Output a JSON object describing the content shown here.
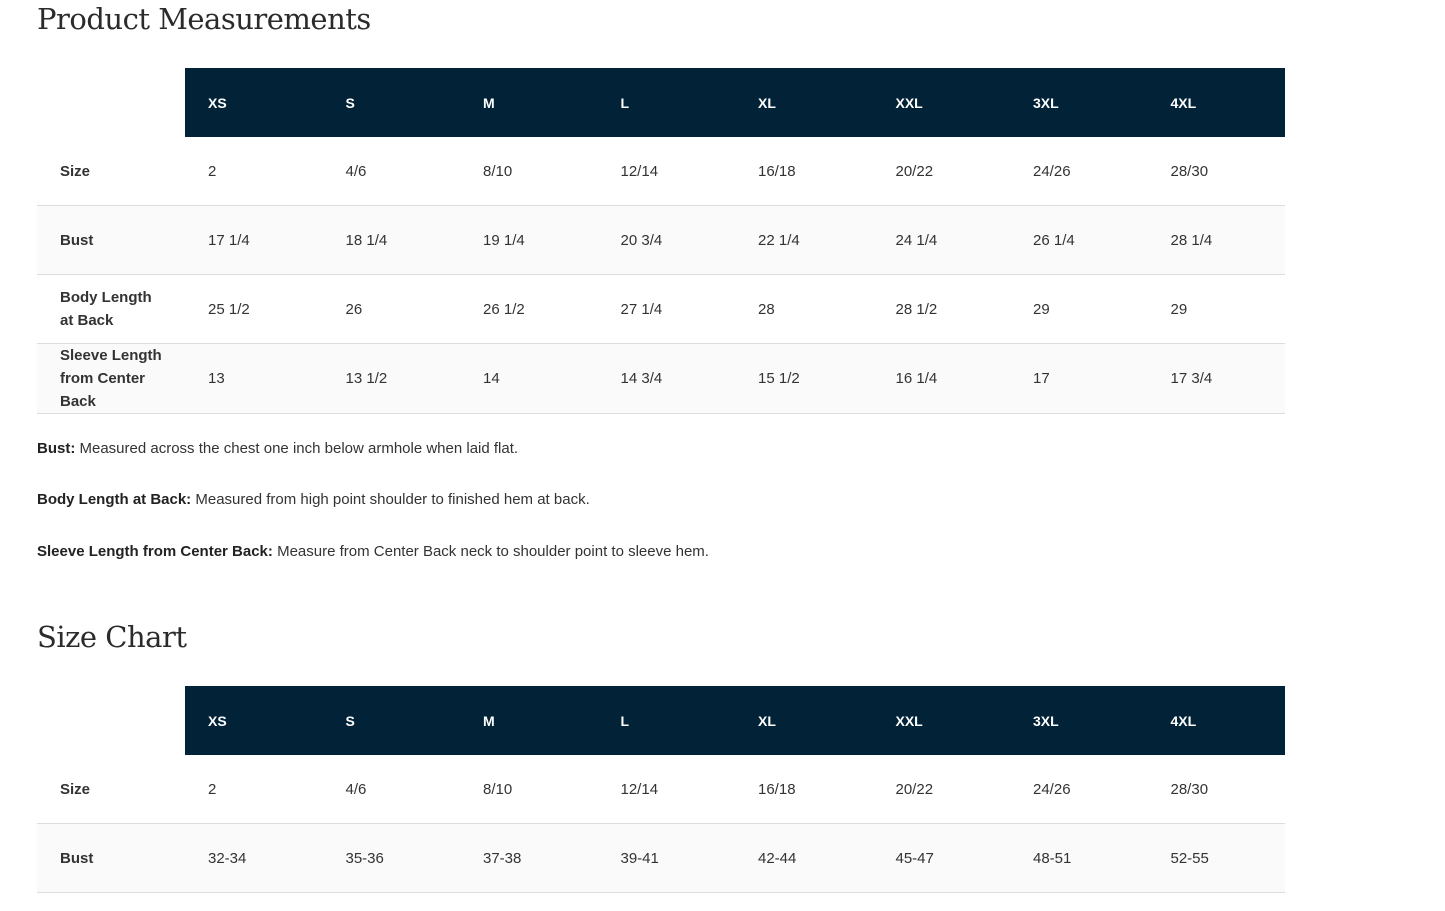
{
  "measurements": {
    "title": "Product Measurements",
    "headers": [
      "XS",
      "S",
      "M",
      "L",
      "XL",
      "XXL",
      "3XL",
      "4XL"
    ],
    "rows": [
      {
        "label": "Size",
        "values": [
          "2",
          "4/6",
          "8/10",
          "12/14",
          "16/18",
          "20/22",
          "24/26",
          "28/30"
        ]
      },
      {
        "label": "Bust",
        "values": [
          "17 1/4",
          "18 1/4",
          "19 1/4",
          "20 3/4",
          "22 1/4",
          "24 1/4",
          "26 1/4",
          "28 1/4"
        ]
      },
      {
        "label": "Body Length at Back",
        "values": [
          "25 1/2",
          "26",
          "26 1/2",
          "27 1/4",
          "28",
          "28 1/2",
          "29",
          "29"
        ]
      },
      {
        "label": "Sleeve Length from Center Back",
        "values": [
          "13",
          "13 1/2",
          "14",
          "14 3/4",
          "15 1/2",
          "16 1/4",
          "17",
          "17 3/4"
        ]
      }
    ],
    "notes": [
      {
        "term": "Bust:",
        "text": " Measured across the chest one inch below armhole when laid flat."
      },
      {
        "term": "Body Length at Back:",
        "text": " Measured from high point shoulder to finished hem at back."
      },
      {
        "term": "Sleeve Length from Center Back:",
        "text": " Measure from Center Back neck to shoulder point to sleeve hem."
      }
    ]
  },
  "size_chart": {
    "title": "Size Chart",
    "headers": [
      "XS",
      "S",
      "M",
      "L",
      "XL",
      "XXL",
      "3XL",
      "4XL"
    ],
    "rows": [
      {
        "label": "Size",
        "values": [
          "2",
          "4/6",
          "8/10",
          "12/14",
          "16/18",
          "20/22",
          "24/26",
          "28/30"
        ]
      },
      {
        "label": "Bust",
        "values": [
          "32-34",
          "35-36",
          "37-38",
          "39-41",
          "42-44",
          "45-47",
          "48-51",
          "52-55"
        ]
      }
    ]
  },
  "colors": {
    "header_bg": "#022337",
    "alt_row_bg": "#fafafa"
  }
}
